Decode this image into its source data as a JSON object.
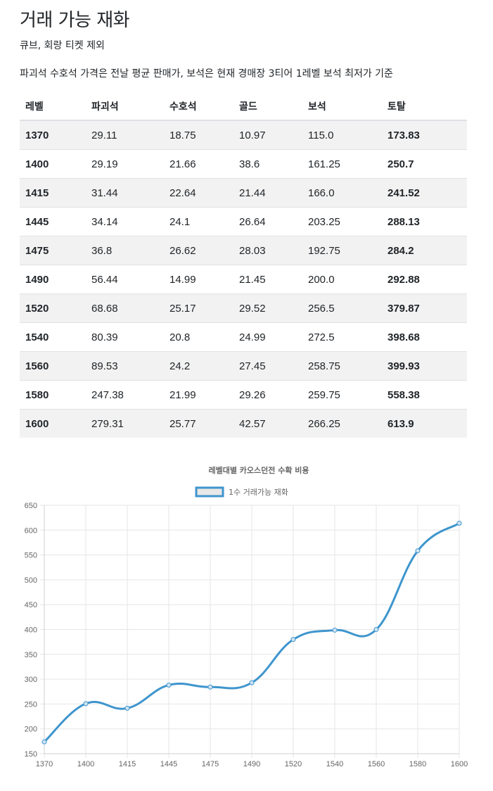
{
  "page": {
    "title": "거래 가능 재화",
    "subtitle": "큐브, 회랑 티켓 제외",
    "note": "파괴석 수호석 가격은 전날 평균 판매가, 보석은 현재 경매장 3티어 1레벨 보석 최저가 기준"
  },
  "table": {
    "headers": [
      "레벨",
      "파괴석",
      "수호석",
      "골드",
      "보석",
      "토탈"
    ],
    "rows": [
      [
        "1370",
        "29.11",
        "18.75",
        "10.97",
        "115.0",
        "173.83"
      ],
      [
        "1400",
        "29.19",
        "21.66",
        "38.6",
        "161.25",
        "250.7"
      ],
      [
        "1415",
        "31.44",
        "22.64",
        "21.44",
        "166.0",
        "241.52"
      ],
      [
        "1445",
        "34.14",
        "24.1",
        "26.64",
        "203.25",
        "288.13"
      ],
      [
        "1475",
        "36.8",
        "26.62",
        "28.03",
        "192.75",
        "284.2"
      ],
      [
        "1490",
        "56.44",
        "14.99",
        "21.45",
        "200.0",
        "292.88"
      ],
      [
        "1520",
        "68.68",
        "25.17",
        "29.52",
        "256.5",
        "379.87"
      ],
      [
        "1540",
        "80.39",
        "20.8",
        "24.99",
        "272.5",
        "398.68"
      ],
      [
        "1560",
        "89.53",
        "24.2",
        "27.45",
        "258.75",
        "399.93"
      ],
      [
        "1580",
        "247.38",
        "21.99",
        "29.26",
        "259.75",
        "558.38"
      ],
      [
        "1600",
        "279.31",
        "25.77",
        "42.57",
        "266.25",
        "613.9"
      ]
    ]
  },
  "chart_data": {
    "type": "line",
    "title": "레벨대별 카오스던전 수확 비용",
    "legend_position": "top",
    "categories": [
      "1370",
      "1400",
      "1415",
      "1445",
      "1475",
      "1490",
      "1520",
      "1540",
      "1560",
      "1580",
      "1600"
    ],
    "series": [
      {
        "name": "1수 거래가능 재화",
        "values": [
          173.83,
          250.7,
          241.52,
          288.13,
          284.2,
          292.88,
          379.87,
          398.68,
          399.93,
          558.38,
          613.9
        ]
      }
    ],
    "yticks": [
      150,
      200,
      250,
      300,
      350,
      400,
      450,
      500,
      550,
      600,
      650
    ],
    "ylim": [
      150,
      650
    ],
    "grid": true,
    "colors": {
      "line": "#3e95cd",
      "legend_fill": "#e8e8e8",
      "grid": "#e6e6e6"
    }
  }
}
